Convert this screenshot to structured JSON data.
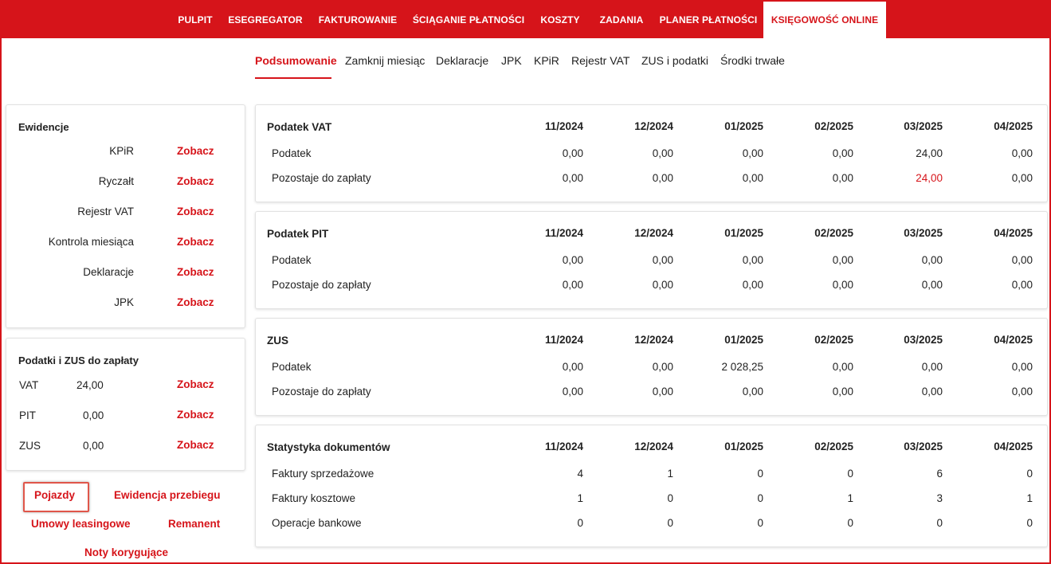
{
  "topnav": {
    "items": [
      {
        "label": "PULPIT",
        "active": false
      },
      {
        "label": "ESEGREGATOR",
        "active": false
      },
      {
        "label": "FAKTUROWANIE",
        "active": false
      },
      {
        "label": "ŚCIĄGANIE PŁATNOŚCI",
        "active": false
      },
      {
        "label": "KOSZTY",
        "active": false
      },
      {
        "label": "ZADANIA",
        "active": false
      },
      {
        "label": "PLANER PŁATNOŚCI",
        "active": false
      },
      {
        "label": "KSIĘGOWOŚĆ ONLINE",
        "active": true
      }
    ]
  },
  "subnav": {
    "items": [
      {
        "label": "Podsumowanie",
        "active": true
      },
      {
        "label": "Zamknij miesiąc",
        "active": false
      },
      {
        "label": "Deklaracje",
        "active": false
      },
      {
        "label": "JPK",
        "active": false
      },
      {
        "label": "KPiR",
        "active": false
      },
      {
        "label": "Rejestr VAT",
        "active": false
      },
      {
        "label": "ZUS i podatki",
        "active": false
      },
      {
        "label": "Środki trwałe",
        "active": false
      }
    ]
  },
  "ewidencje": {
    "title": "Ewidencje",
    "link_label": "Zobacz",
    "rows": [
      "KPiR",
      "Ryczałt",
      "Rejestr VAT",
      "Kontrola miesiąca",
      "Deklaracje",
      "JPK"
    ]
  },
  "podatki": {
    "title": "Podatki i ZUS do zapłaty",
    "link_label": "Zobacz",
    "rows": [
      {
        "name": "VAT",
        "value": "24,00"
      },
      {
        "name": "PIT",
        "value": "0,00"
      },
      {
        "name": "ZUS",
        "value": "0,00"
      }
    ]
  },
  "links": {
    "pojazdy": "Pojazdy",
    "ewidencja_przebiegu": "Ewidencja przebiegu",
    "umowy_leasingowe": "Umowy leasingowe",
    "remanent": "Remanent",
    "noty_korygujace": "Noty korygujące"
  },
  "periods": [
    "11/2024",
    "12/2024",
    "01/2025",
    "02/2025",
    "03/2025",
    "04/2025"
  ],
  "tables": [
    {
      "title": "Podatek VAT",
      "rows": [
        {
          "label": "Podatek",
          "values": [
            "0,00",
            "0,00",
            "0,00",
            "0,00",
            "24,00",
            "0,00"
          ]
        },
        {
          "label": "Pozostaje do zapłaty",
          "values": [
            "0,00",
            "0,00",
            "0,00",
            "0,00",
            "24,00",
            "0,00"
          ],
          "red_index": 4
        }
      ]
    },
    {
      "title": "Podatek PIT",
      "rows": [
        {
          "label": "Podatek",
          "values": [
            "0,00",
            "0,00",
            "0,00",
            "0,00",
            "0,00",
            "0,00"
          ]
        },
        {
          "label": "Pozostaje do zapłaty",
          "values": [
            "0,00",
            "0,00",
            "0,00",
            "0,00",
            "0,00",
            "0,00"
          ]
        }
      ]
    },
    {
      "title": "ZUS",
      "rows": [
        {
          "label": "Podatek",
          "values": [
            "0,00",
            "0,00",
            "2 028,25",
            "0,00",
            "0,00",
            "0,00"
          ]
        },
        {
          "label": "Pozostaje do zapłaty",
          "values": [
            "0,00",
            "0,00",
            "0,00",
            "0,00",
            "0,00",
            "0,00"
          ]
        }
      ]
    },
    {
      "title": "Statystyka dokumentów",
      "rows": [
        {
          "label": "Faktury sprzedażowe",
          "values": [
            "4",
            "1",
            "0",
            "0",
            "6",
            "0"
          ]
        },
        {
          "label": "Faktury kosztowe",
          "values": [
            "1",
            "0",
            "0",
            "1",
            "3",
            "1"
          ]
        },
        {
          "label": "Operacje bankowe",
          "values": [
            "0",
            "0",
            "0",
            "0",
            "0",
            "0"
          ]
        }
      ]
    }
  ],
  "colors": {
    "brand": "#d6141a",
    "text": "#222222",
    "highlight": "#e0564a"
  }
}
